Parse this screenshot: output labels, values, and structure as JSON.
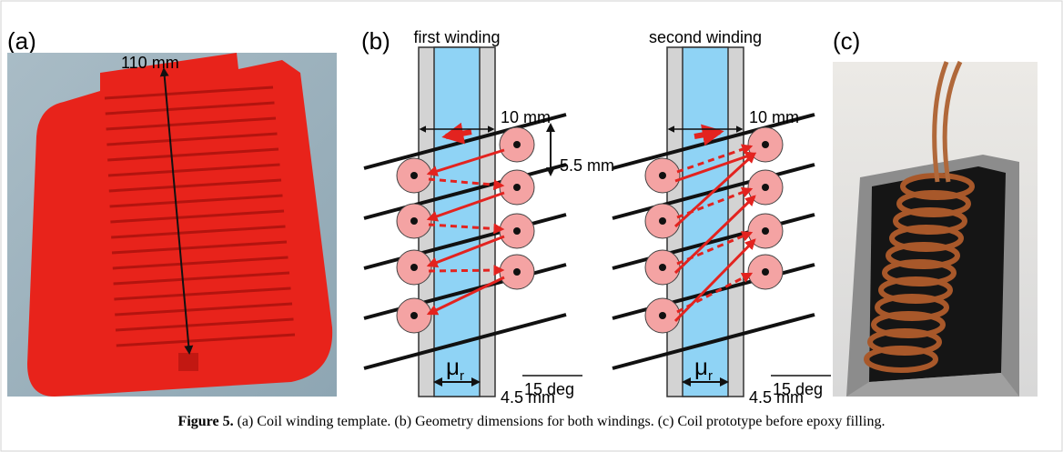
{
  "panels": [
    {
      "label": "(a)",
      "dimension": "110 mm"
    },
    {
      "label": "(b)",
      "windings": [
        {
          "title": "first winding",
          "width": "10 mm",
          "pitch": "5.5 mm",
          "angle": "15 deg",
          "core": "μ",
          "core_sub": "r",
          "gap": "4.5 mm"
        },
        {
          "title": "second winding",
          "width": "10 mm",
          "angle": "15 deg",
          "core": "μ",
          "core_sub": "r",
          "gap": "4.5 mm"
        }
      ]
    },
    {
      "label": "(c)"
    }
  ],
  "caption": {
    "label": "Figure 5.",
    "text": "(a) Coil winding template. (b) Geometry dimensions for both windings. (c) Coil prototype before epoxy filling."
  }
}
